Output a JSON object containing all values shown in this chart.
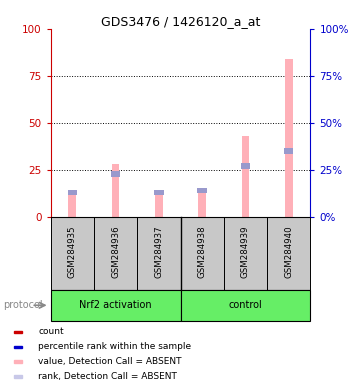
{
  "title": "GDS3476 / 1426120_a_at",
  "samples": [
    "GSM284935",
    "GSM284936",
    "GSM284937",
    "GSM284938",
    "GSM284939",
    "GSM284940"
  ],
  "pink_values": [
    12,
    28,
    12,
    13,
    43,
    84
  ],
  "blue_values": [
    13,
    23,
    13,
    14,
    27,
    35
  ],
  "ylim": [
    0,
    100
  ],
  "yticks": [
    0,
    25,
    50,
    75,
    100
  ],
  "left_axis_color": "#cc0000",
  "right_axis_color": "#0000cc",
  "pink_bar_color": "#FFB0B8",
  "blue_bar_color": "#9999CC",
  "bg_color": "#ffffff",
  "sample_box_color": "#C8C8C8",
  "group1_label": "Nrf2 activation",
  "group2_label": "control",
  "group_color": "#66EE66",
  "bar_width": 0.18
}
